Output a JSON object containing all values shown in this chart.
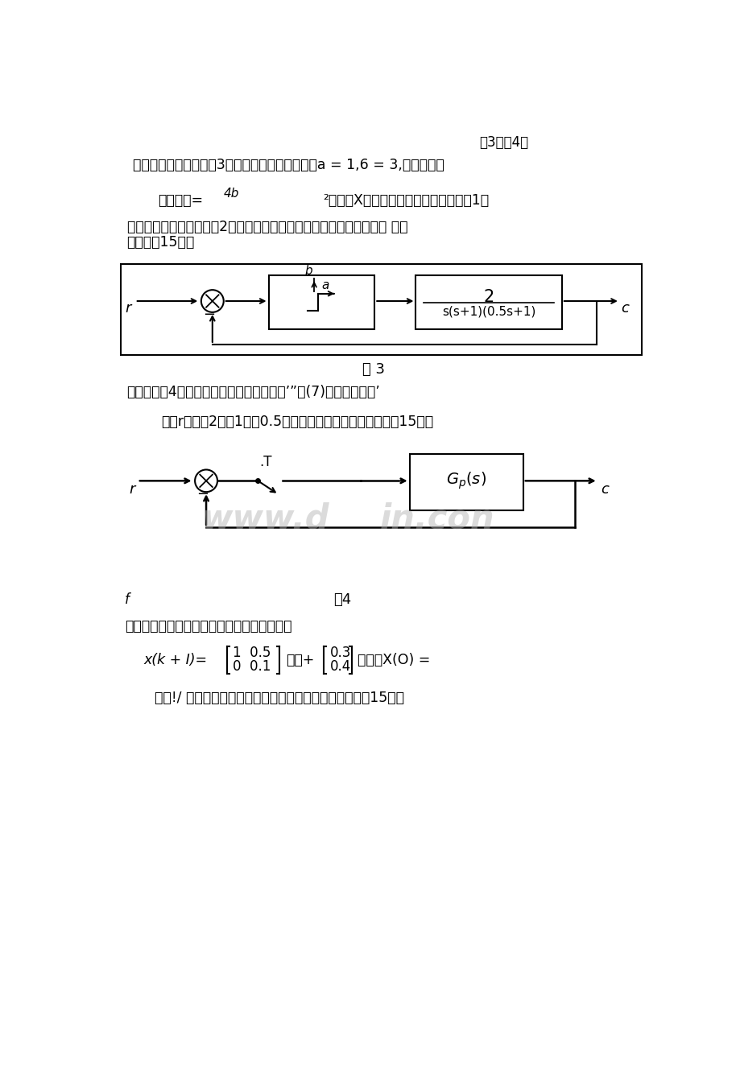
{
  "bg_color": "#ffffff",
  "page_header": "第3页兲4页",
  "s5_l1": "五、设非线性系统如图3所示，其中非线性环节中a = 1,6 = 3,非线性环节",
  "s5_l2a": "描述函数=",
  "s5_l2b": "4b",
  "s5_l2c": "²，其中X为非线性环节的输入幅值，（1）",
  "s5_l3": "试判定系统的稳定性；（2）系统是否存在极限环，若存在请计算出频 率和",
  "s5_l4": "振幅。（15分）",
  "fig3_lbl": "图 3",
  "s6_l1": "六、已知图4所示系统的传递函数为印卜么’”。(7)为零阶保持器’",
  "s6_l2": "试求r分别为2秒、1秒和0.5秒时，系统稳定的么值范围。（15分）",
  "fig4_lbl": "图4",
  "s7_l1": "七、已知离散时间系统的系统方程和初态如下",
  "s7_eq": "x(k + I)=",
  "s7_mid": "讲）+",
  "s7_end": "啊），X(O) =",
  "s7_l3": "试求!/ （么）使系统可在第二个采样时刻转移到原点。（15分）"
}
